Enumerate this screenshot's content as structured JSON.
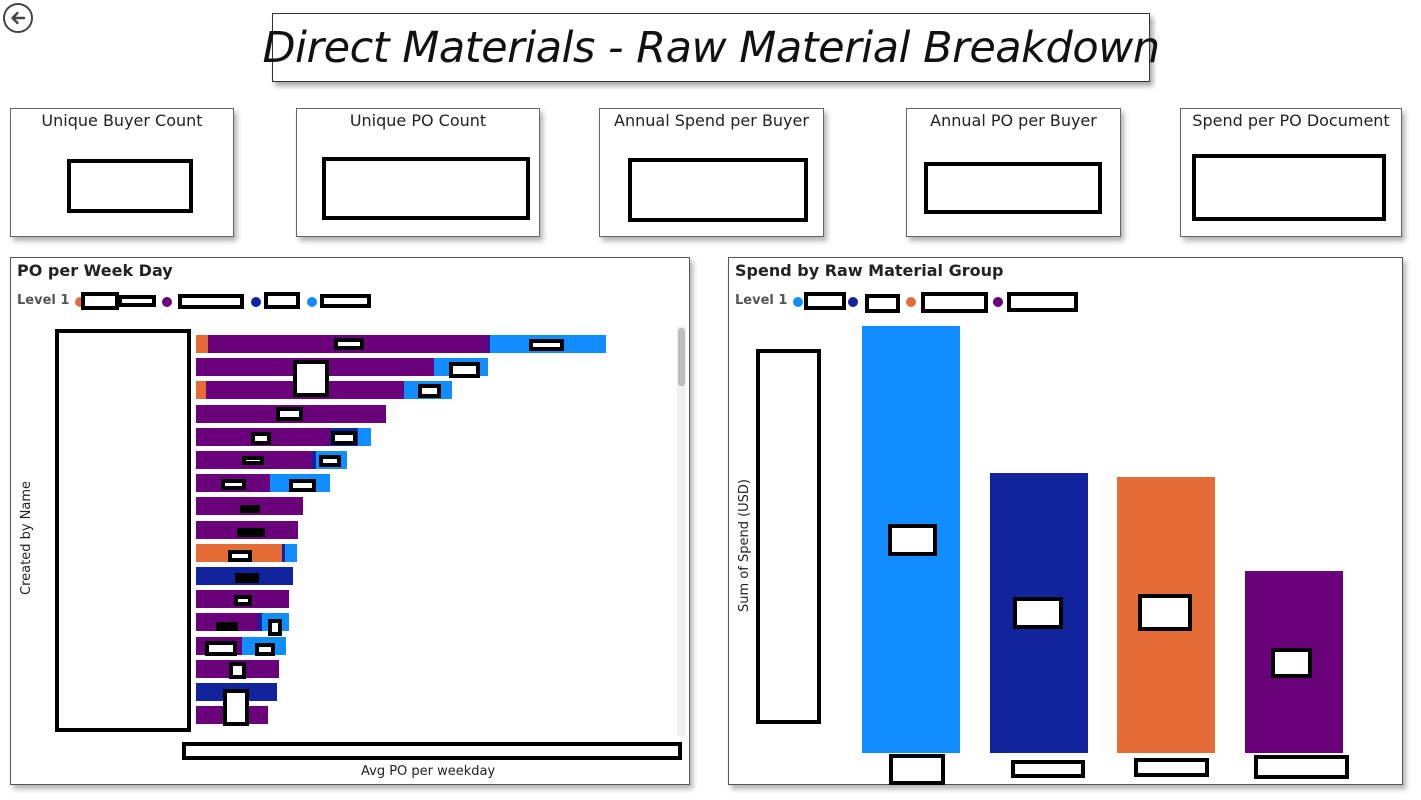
{
  "page": {
    "title": "Direct Materials - Raw Material Breakdown"
  },
  "icons": {
    "back": "back-arrow-icon"
  },
  "kpis": [
    {
      "label": "Unique Buyer Count"
    },
    {
      "label": "Unique PO Count"
    },
    {
      "label": "Annual Spend per Buyer"
    },
    {
      "label": "Annual PO per Buyer"
    },
    {
      "label": "Spend per PO Document"
    }
  ],
  "colors": {
    "orange": "#E66C37",
    "purple": "#6B007B",
    "dark_blue": "#12239E",
    "light_blue": "#118DFF"
  },
  "left_chart": {
    "title": "PO per Week Day",
    "legend_title": "Level 1",
    "ylabel": "Created by Name",
    "xlabel": "Avg PO per weekday"
  },
  "right_chart": {
    "title": "Spend by Raw Material Group",
    "legend_title": "Level 1",
    "ylabel": "Sum of Spend (USD)"
  },
  "chart_data": [
    {
      "type": "bar",
      "orientation": "horizontal",
      "stacked": true,
      "title": "PO per Week Day",
      "xlabel": "Avg PO per weekday",
      "ylabel": "Created by Name",
      "legend_title": "Level 1",
      "rows": [
        {
          "segments": [
            [
              "orange",
              12
            ],
            [
              "purple",
              280
            ],
            [
              "dark_blue",
              2
            ],
            [
              "light_blue",
              116
            ]
          ]
        },
        {
          "segments": [
            [
              "purple",
              238
            ],
            [
              "light_blue",
              54
            ]
          ]
        },
        {
          "segments": [
            [
              "orange",
              10
            ],
            [
              "purple",
              198
            ],
            [
              "light_blue",
              48
            ]
          ]
        },
        {
          "segments": [
            [
              "purple",
              190
            ]
          ]
        },
        {
          "segments": [
            [
              "purple",
              134
            ],
            [
              "dark_blue",
              28
            ],
            [
              "light_blue",
              13
            ]
          ]
        },
        {
          "segments": [
            [
              "purple",
              116
            ],
            [
              "dark_blue",
              4
            ],
            [
              "light_blue",
              31
            ]
          ]
        },
        {
          "segments": [
            [
              "purple",
              74
            ],
            [
              "light_blue",
              60
            ]
          ]
        },
        {
          "segments": [
            [
              "purple",
              107
            ]
          ]
        },
        {
          "segments": [
            [
              "purple",
              102
            ]
          ]
        },
        {
          "segments": [
            [
              "orange",
              86
            ],
            [
              "dark_blue",
              3
            ],
            [
              "light_blue",
              12
            ]
          ]
        },
        {
          "segments": [
            [
              "dark_blue",
              97
            ]
          ]
        },
        {
          "segments": [
            [
              "purple",
              93
            ]
          ]
        },
        {
          "segments": [
            [
              "purple",
              62
            ],
            [
              "dark_blue",
              4
            ],
            [
              "light_blue",
              27
            ]
          ]
        },
        {
          "segments": [
            [
              "purple",
              46
            ],
            [
              "light_blue",
              44
            ]
          ]
        },
        {
          "segments": [
            [
              "purple",
              83
            ]
          ]
        },
        {
          "segments": [
            [
              "dark_blue",
              81
            ]
          ]
        },
        {
          "segments": [
            [
              "purple",
              72
            ]
          ]
        }
      ]
    },
    {
      "type": "bar",
      "orientation": "vertical",
      "title": "Spend by Raw Material Group",
      "ylabel": "Sum of Spend (USD)",
      "legend_title": "Level 1",
      "values": [
        {
          "color": "light_blue",
          "value": 425
        },
        {
          "color": "dark_blue",
          "value": 279
        },
        {
          "color": "orange",
          "value": 275
        },
        {
          "color": "purple",
          "value": 181
        }
      ]
    }
  ]
}
